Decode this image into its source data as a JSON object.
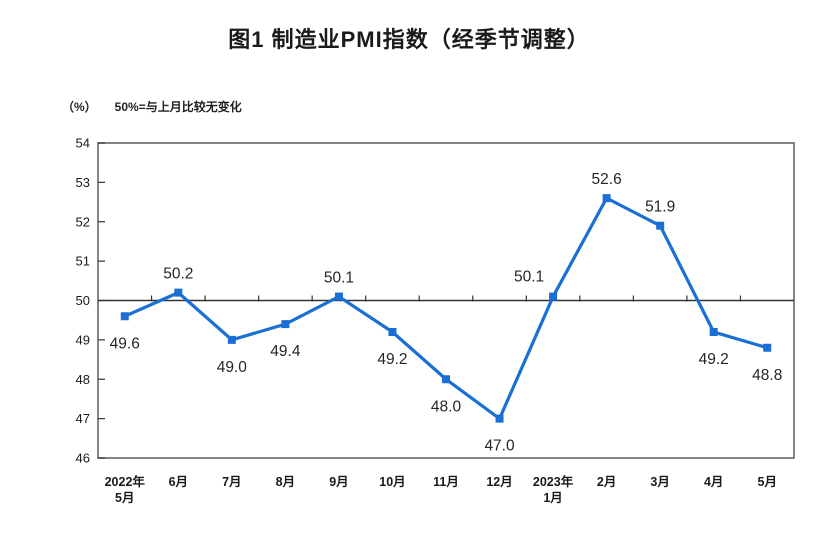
{
  "title": "图1 制造业PMI指数（经季节调整）",
  "unit_label": "（%）",
  "baseline_note": "50%=与上月比较无变化",
  "colors": {
    "line": "#1a6fd4",
    "marker": "#1a6fd4",
    "plot_border": "#666666",
    "axis_line": "#333333",
    "tick": "#333333",
    "text": "#1a1a1a",
    "data_label": "#262626",
    "background": "#ffffff"
  },
  "chart_data": {
    "type": "line",
    "title": "图1 制造业PMI指数（经季节调整）",
    "ylabel": "（%）",
    "annotation": "50%=与上月比较无变化",
    "categories": [
      "2022年|5月",
      "6月",
      "7月",
      "8月",
      "9月",
      "10月",
      "11月",
      "12月",
      "2023年|1月",
      "2月",
      "3月",
      "4月",
      "5月"
    ],
    "values": [
      49.6,
      50.2,
      49.0,
      49.4,
      50.1,
      49.2,
      48.0,
      47.0,
      50.1,
      52.6,
      51.9,
      49.2,
      48.8
    ],
    "data_labels": [
      "49.6",
      "50.2",
      "49.0",
      "49.4",
      "50.1",
      "49.2",
      "48.0",
      "47.0",
      "50.1",
      "52.6",
      "51.9",
      "49.2",
      "48.8"
    ],
    "label_pos": [
      "below",
      "above",
      "below",
      "below",
      "above",
      "below",
      "below",
      "below",
      "above-left",
      "above",
      "above",
      "below",
      "below"
    ],
    "ylim": [
      46,
      54
    ],
    "ytick_step": 1,
    "yticks": [
      "46",
      "47",
      "48",
      "49",
      "50",
      "51",
      "52",
      "53",
      "54"
    ],
    "baseline": 50,
    "grid": "off",
    "legend": "none",
    "marker": "square"
  }
}
